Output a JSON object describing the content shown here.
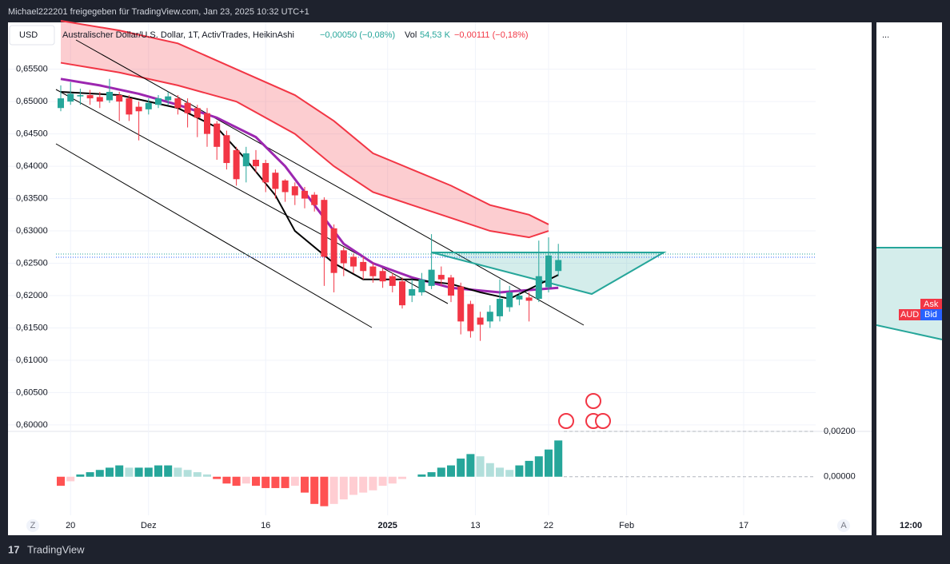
{
  "header": {
    "shared_by": "Michael222201 freigegeben für TradingView.com, Jan 23, 2025 10:32 UTC+1",
    "brand": "TradingView"
  },
  "chart_data": {
    "type": "candlestick",
    "currency": "USD",
    "title": "Australischer Dollar/U.S. Dollar, 1T, ActivTrades, HeikinAshi",
    "change": "−0,00050 (−0,08%)",
    "volume_label": "Vol",
    "volume": "54,53 K",
    "volume_change": "−0,00111 (−0,18%)",
    "open": [
      0.649,
      0.65,
      0.6508,
      0.651,
      0.6507,
      0.6502,
      0.651,
      0.6505,
      0.6492,
      0.6488,
      0.6495,
      0.6502,
      0.6505,
      0.6498,
      0.649,
      0.6482,
      0.6466,
      0.6448,
      0.6425,
      0.64,
      0.641,
      0.6405,
      0.639,
      0.6378,
      0.6369,
      0.6362,
      0.6356,
      0.6348,
      0.6304,
      0.627,
      0.626,
      0.6252,
      0.6245,
      0.6238,
      0.623,
      0.6222,
      0.62,
      0.6205,
      0.6215,
      0.6232,
      0.6228,
      0.6214,
      0.6187,
      0.6166,
      0.616,
      0.6168,
      0.6182,
      0.6194,
      0.6197,
      0.6195,
      0.6213,
      0.6238
    ],
    "high": [
      0.6525,
      0.653,
      0.652,
      0.6518,
      0.6515,
      0.6535,
      0.6515,
      0.651,
      0.65,
      0.6505,
      0.651,
      0.6515,
      0.651,
      0.6505,
      0.6495,
      0.649,
      0.647,
      0.6455,
      0.643,
      0.643,
      0.6425,
      0.641,
      0.6395,
      0.638,
      0.6375,
      0.6368,
      0.636,
      0.6352,
      0.631,
      0.6275,
      0.6265,
      0.626,
      0.625,
      0.6242,
      0.6235,
      0.6228,
      0.6225,
      0.6235,
      0.6295,
      0.6245,
      0.6232,
      0.622,
      0.6192,
      0.6175,
      0.6185,
      0.6225,
      0.6215,
      0.6205,
      0.6205,
      0.6285,
      0.629,
      0.628
    ],
    "low": [
      0.6485,
      0.6495,
      0.6495,
      0.6495,
      0.649,
      0.6498,
      0.647,
      0.647,
      0.644,
      0.648,
      0.649,
      0.6495,
      0.648,
      0.646,
      0.6445,
      0.643,
      0.641,
      0.6395,
      0.637,
      0.6375,
      0.639,
      0.636,
      0.635,
      0.6345,
      0.634,
      0.6335,
      0.633,
      0.6215,
      0.6205,
      0.623,
      0.6235,
      0.6225,
      0.622,
      0.6212,
      0.6205,
      0.618,
      0.619,
      0.62,
      0.621,
      0.6215,
      0.619,
      0.614,
      0.6135,
      0.613,
      0.615,
      0.616,
      0.6175,
      0.6185,
      0.616,
      0.619,
      0.6205,
      0.623
    ],
    "close": [
      0.6505,
      0.6512,
      0.651,
      0.6505,
      0.65,
      0.6515,
      0.65,
      0.648,
      0.6485,
      0.6498,
      0.6505,
      0.6508,
      0.649,
      0.6482,
      0.6475,
      0.645,
      0.643,
      0.6405,
      0.638,
      0.642,
      0.64,
      0.6375,
      0.6365,
      0.636,
      0.6355,
      0.635,
      0.634,
      0.626,
      0.6235,
      0.625,
      0.6245,
      0.6238,
      0.623,
      0.6222,
      0.6215,
      0.6185,
      0.621,
      0.6225,
      0.624,
      0.6225,
      0.62,
      0.616,
      0.6145,
      0.6155,
      0.6175,
      0.6195,
      0.6205,
      0.62,
      0.6192,
      0.623,
      0.6262,
      0.6255
    ],
    "up_color": "#26a69a",
    "down_color": "#f23645",
    "lines": [
      {
        "color": "#9c27b0",
        "x": [
          0,
          4,
          8,
          12,
          16,
          20,
          23,
          26,
          29,
          32,
          36,
          40,
          45,
          51
        ],
        "values": [
          0.6535,
          0.6525,
          0.6512,
          0.6495,
          0.6475,
          0.6445,
          0.64,
          0.634,
          0.628,
          0.625,
          0.6228,
          0.6212,
          0.6205,
          0.6212
        ]
      },
      {
        "color": "#000000",
        "x": [
          0,
          6,
          12,
          16,
          19,
          22,
          24,
          28,
          31,
          36,
          40,
          43,
          46,
          51
        ],
        "values": [
          0.6515,
          0.651,
          0.649,
          0.646,
          0.641,
          0.6355,
          0.63,
          0.625,
          0.6225,
          0.6225,
          0.6218,
          0.6205,
          0.6195,
          0.6232
        ]
      }
    ],
    "cloud": {
      "color": "#f23645",
      "x": [
        0,
        6,
        12,
        18,
        24,
        28,
        32,
        36,
        40,
        44,
        48,
        50
      ],
      "upper": [
        0.6625,
        0.661,
        0.659,
        0.655,
        0.651,
        0.647,
        0.642,
        0.6395,
        0.637,
        0.634,
        0.6325,
        0.631
      ],
      "lower": [
        0.656,
        0.6545,
        0.6525,
        0.65,
        0.645,
        0.64,
        0.636,
        0.634,
        0.632,
        0.63,
        0.629,
        0.63
      ]
    },
    "ylim": [
      0.599,
      0.662
    ],
    "yticks": [
      {
        "value": 0.6,
        "label": "0,60000"
      },
      {
        "value": 0.605,
        "label": "0,60500"
      },
      {
        "value": 0.61,
        "label": "0,61000"
      },
      {
        "value": 0.615,
        "label": "0,61500"
      },
      {
        "value": 0.62,
        "label": "0,62000"
      },
      {
        "value": 0.625,
        "label": "0,62500"
      },
      {
        "value": 0.63,
        "label": "0,63000"
      },
      {
        "value": 0.635,
        "label": "0,63500"
      },
      {
        "value": 0.64,
        "label": "0,64000"
      },
      {
        "value": 0.645,
        "label": "0,64500"
      },
      {
        "value": 0.65,
        "label": "0,65000"
      },
      {
        "value": 0.655,
        "label": "0,65500"
      }
    ],
    "xticks": [
      {
        "value": 1,
        "label": "20"
      },
      {
        "value": 9,
        "label": "Dez"
      },
      {
        "value": 21,
        "label": "16"
      },
      {
        "value": 33.5,
        "label": "2025"
      },
      {
        "value": 42.5,
        "label": "13"
      },
      {
        "value": 50,
        "label": "22"
      },
      {
        "value": 58,
        "label": "Feb"
      },
      {
        "value": 70,
        "label": "17"
      }
    ],
    "grid": true,
    "oscillator": {
      "values": [
        -0.0004,
        -0.0002,
        0.0001,
        0.0002,
        0.0003,
        0.0004,
        0.0005,
        0.0004,
        0.0004,
        0.0004,
        0.0005,
        0.0005,
        0.0004,
        0.0003,
        0.0002,
        0.0001,
        -0.0001,
        -0.0003,
        -0.0004,
        -0.0003,
        -0.0004,
        -0.0005,
        -0.0005,
        -0.0005,
        -0.0004,
        -0.0007,
        -0.0012,
        -0.0013,
        -0.0012,
        -0.001,
        -0.0008,
        -0.0007,
        -0.0006,
        -0.0004,
        -0.0003,
        -0.0001,
        0.0,
        0.0001,
        0.0002,
        0.0004,
        0.0005,
        0.0008,
        0.001,
        0.0009,
        0.0006,
        0.0004,
        0.0003,
        0.0005,
        0.0007,
        0.0009,
        0.0012,
        0.0016
      ],
      "ylim": [
        -0.0017,
        0.002
      ],
      "yticks": [
        {
          "value": 0.002,
          "label": "0,00200"
        },
        {
          "value": 0,
          "label": "0,00000"
        }
      ]
    }
  },
  "side_panel": {
    "menu": "...",
    "ask": "Ask",
    "bid": "Bid",
    "symbol": "AUD",
    "time": "12:00"
  },
  "controls": {
    "zoom": "Z",
    "auto": "A"
  }
}
